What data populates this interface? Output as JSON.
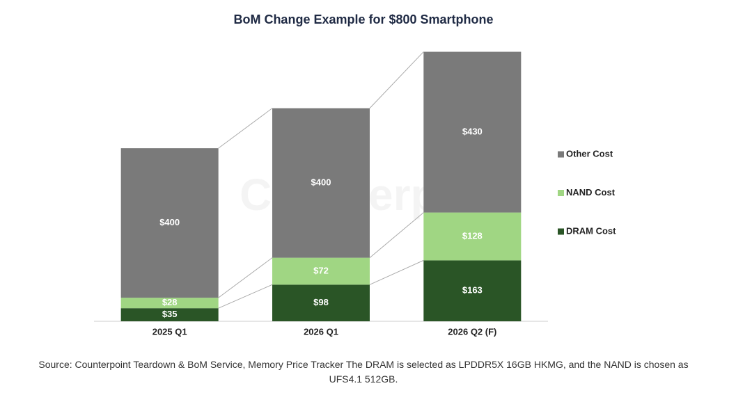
{
  "chart_data": {
    "type": "stacked_bar",
    "title": "BoM Change Example for $800 Smartphone",
    "categories": [
      "2025 Q1",
      "2026 Q1",
      "2026 Q2 (F)"
    ],
    "series": [
      {
        "name": "DRAM Cost",
        "color": "#2a5526",
        "values": [
          35,
          98,
          163
        ],
        "value_labels": [
          "$35",
          "$98",
          "$163"
        ]
      },
      {
        "name": "NAND Cost",
        "color": "#a0d683",
        "values": [
          28,
          72,
          128
        ],
        "value_labels": [
          "$28",
          "$72",
          "$128"
        ]
      },
      {
        "name": "Other Cost",
        "color": "#7a7a7a",
        "values": [
          400,
          400,
          430
        ],
        "value_labels": [
          "$400",
          "$400",
          "$430"
        ]
      }
    ],
    "ylim": [
      0,
      720
    ],
    "legend": "right",
    "watermark": "Counterpoint",
    "source": "Source: Counterpoint Teardown & BoM Service, Memory Price Tracker The DRAM is selected as LPDDR5X 16GB HKMG, and the NAND is chosen as UFS4.1 512GB."
  }
}
